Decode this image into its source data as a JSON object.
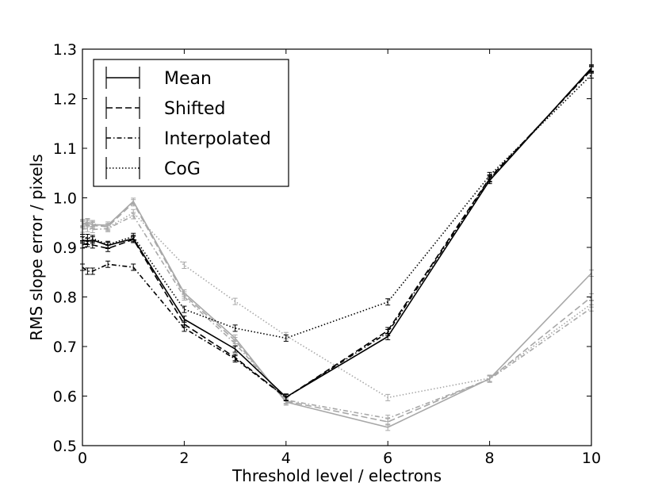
{
  "chart_data": {
    "type": "line",
    "title": "",
    "xlabel": "Threshold level / electrons",
    "ylabel": "RMS slope error / pixels",
    "xlim": [
      0,
      10
    ],
    "ylim": [
      0.5,
      1.3
    ],
    "xticks": [
      0,
      2,
      4,
      6,
      8,
      10
    ],
    "xtick_labels": [
      "0",
      "2",
      "4",
      "6",
      "8",
      "10"
    ],
    "yticks": [
      0.5,
      0.6,
      0.7,
      0.8,
      0.9,
      1.0,
      1.1,
      1.2,
      1.3
    ],
    "ytick_labels": [
      "0.5",
      "0.6",
      "0.7",
      "0.8",
      "0.9",
      "1.0",
      "1.1",
      "1.2",
      "1.3"
    ],
    "grid": false,
    "legend_position": "top-left",
    "x": [
      0,
      0.1,
      0.2,
      0.5,
      1,
      2,
      3,
      4,
      6,
      8,
      10
    ],
    "series": [
      {
        "name": "Mean",
        "group": "black",
        "style": "solid",
        "color": "#000000",
        "in_legend": true,
        "values": [
          0.915,
          0.912,
          0.915,
          0.904,
          0.918,
          0.755,
          0.695,
          0.598,
          0.72,
          1.035,
          1.262
        ]
      },
      {
        "name": "Shifted",
        "group": "black",
        "style": "dashed",
        "color": "#000000",
        "in_legend": true,
        "values": [
          0.905,
          0.908,
          0.905,
          0.898,
          0.916,
          0.745,
          0.678,
          0.597,
          0.732,
          1.04,
          1.258
        ]
      },
      {
        "name": "Interpolated",
        "group": "black",
        "style": "dashdot",
        "color": "#000000",
        "in_legend": true,
        "values": [
          0.86,
          0.852,
          0.852,
          0.866,
          0.86,
          0.737,
          0.675,
          0.597,
          0.728,
          1.038,
          1.26
        ]
      },
      {
        "name": "CoG",
        "group": "black",
        "style": "dotted",
        "color": "#000000",
        "in_legend": true,
        "values": [
          0.92,
          0.92,
          0.918,
          0.906,
          0.922,
          0.775,
          0.737,
          0.717,
          0.79,
          1.045,
          1.248
        ]
      },
      {
        "name": "Mean",
        "group": "grey",
        "style": "solid",
        "color": "#a8a8a8",
        "in_legend": false,
        "values": [
          0.948,
          0.95,
          0.946,
          0.945,
          0.993,
          0.808,
          0.717,
          0.588,
          0.537,
          0.635,
          0.848
        ]
      },
      {
        "name": "Shifted",
        "group": "grey",
        "style": "dashed",
        "color": "#a8a8a8",
        "in_legend": false,
        "values": [
          0.946,
          0.948,
          0.944,
          0.942,
          0.99,
          0.804,
          0.712,
          0.59,
          0.548,
          0.635,
          0.8
        ]
      },
      {
        "name": "Interpolated",
        "group": "grey",
        "style": "dashdot",
        "color": "#a8a8a8",
        "in_legend": false,
        "values": [
          0.937,
          0.938,
          0.936,
          0.938,
          0.964,
          0.8,
          0.706,
          0.592,
          0.555,
          0.634,
          0.778
        ]
      },
      {
        "name": "CoG",
        "group": "grey",
        "style": "dotted",
        "color": "#a8a8a8",
        "in_legend": false,
        "values": [
          0.95,
          0.952,
          0.948,
          0.94,
          0.97,
          0.864,
          0.791,
          0.722,
          0.597,
          0.636,
          0.786
        ]
      }
    ]
  }
}
